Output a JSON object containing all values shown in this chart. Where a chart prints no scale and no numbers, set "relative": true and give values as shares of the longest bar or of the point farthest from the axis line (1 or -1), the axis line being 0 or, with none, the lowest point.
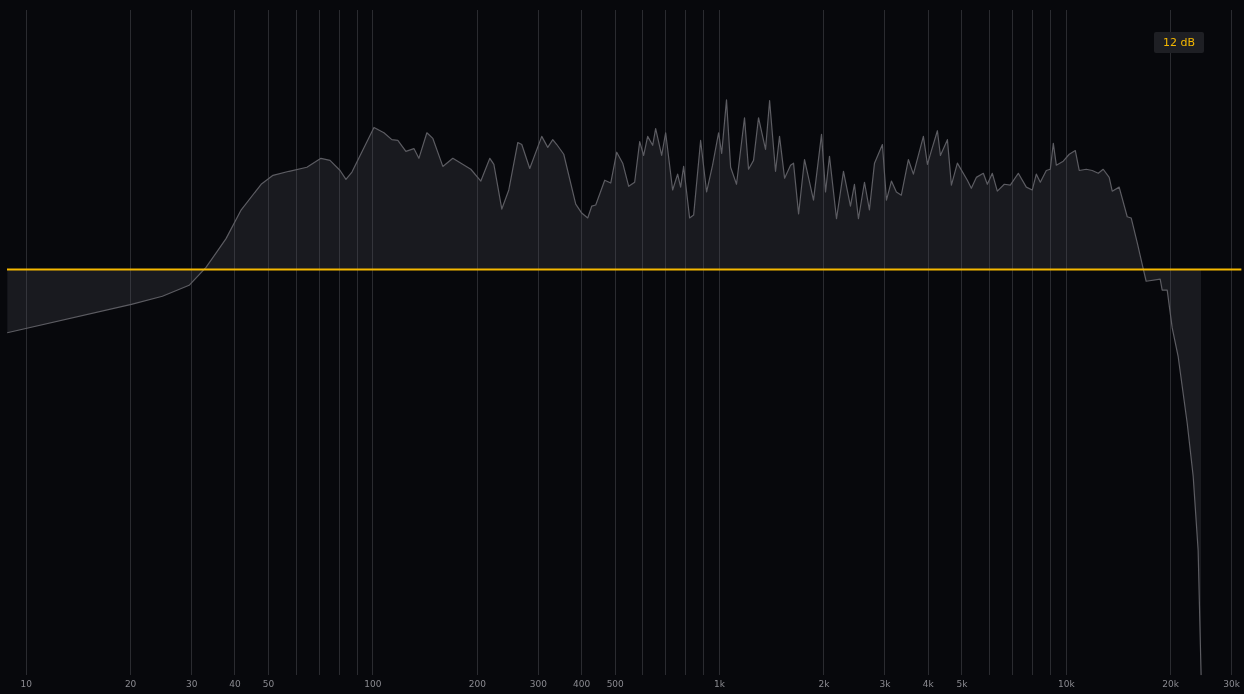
{
  "chart_data": {
    "type": "area",
    "relative": true,
    "log": "x",
    "grid": "x",
    "legend": false,
    "marker": "none",
    "line_style": "solid",
    "xlim": [
      8.8,
      32000
    ],
    "xticks": [
      10,
      20,
      30,
      40,
      50,
      {
        "value": 60,
        "label": null
      },
      {
        "value": 70,
        "label": null
      },
      {
        "value": 80,
        "label": null
      },
      {
        "value": 90,
        "label": null
      },
      100,
      200,
      300,
      400,
      500,
      {
        "value": 600,
        "label": null
      },
      {
        "value": 700,
        "label": null
      },
      {
        "value": 800,
        "label": null
      },
      {
        "value": 900,
        "label": null
      },
      {
        "value": 1000,
        "label": "1k"
      },
      {
        "value": 2000,
        "label": "2k"
      },
      {
        "value": 3000,
        "label": "3k"
      },
      {
        "value": 4000,
        "label": "4k"
      },
      {
        "value": 5000,
        "label": "5k"
      },
      {
        "value": 6000,
        "label": null
      },
      {
        "value": 7000,
        "label": null
      },
      {
        "value": 8000,
        "label": null
      },
      {
        "value": 9000,
        "label": null
      },
      {
        "value": 10000,
        "label": "10k"
      },
      {
        "value": 20000,
        "label": "20k"
      },
      {
        "value": 30000,
        "label": "30k"
      }
    ],
    "annotations": [
      "12 dB"
    ],
    "ref_lines": [
      {
        "axis": "y",
        "value": 0,
        "color": "#f5b800"
      }
    ],
    "series": [
      {
        "color": "#5c5c62",
        "x": [
          8.81,
          20.1,
          24.7,
          29.5,
          33.0,
          37.7,
          41.7,
          47.6,
          51.5,
          57.3,
          64.5,
          70.8,
          75.2,
          80.4,
          83.6,
          87.0,
          100.7,
          107.6,
          113.4,
          118.0,
          124.5,
          131.3,
          135.7,
          143.1,
          148.9,
          159.1,
          170.0,
          191.6,
          204.8,
          217.4,
          223.3,
          235.4,
          246.6,
          261.8,
          268.8,
          283.4,
          306.9,
          319.4,
          330.2,
          339.1,
          355.2,
          384.6,
          400.2,
          416.5,
          427.7,
          439.2,
          466.3,
          485.3,
          505.0,
          525.5,
          546.8,
          568.9,
          588.2,
          603.9,
          620.2,
          641.1,
          654.0,
          680.6,
          698.9,
          732.1,
          756.8,
          772.0,
          787.5,
          819.5,
          841.7,
          881.6,
          917.4,
          954.5,
          993.3,
          1014,
          1047,
          1076,
          1119,
          1180,
          1212,
          1253,
          1295,
          1357,
          1394,
          1450,
          1489,
          1540,
          1602,
          1634,
          1690,
          1758,
          1866,
          1968,
          2021,
          2075,
          2174,
          2277,
          2385,
          2449,
          2515,
          2618,
          2705,
          2798,
          2949,
          3029,
          3131,
          3236,
          3344,
          3504,
          3623,
          3871,
          3977,
          4083,
          4249,
          4335,
          4541,
          4663,
          4852,
          5184,
          5323,
          5502,
          5765,
          5920,
          6120,
          6326,
          6627,
          6896,
          7272,
          7669,
          7980,
          8195,
          8416,
          8758,
          8993,
          9176,
          9361,
          9802,
          10200,
          10620,
          10900,
          11420,
          11880,
          12370,
          12780,
          13300,
          13570,
          14210,
          14990,
          15390,
          16020,
          16670,
          17000,
          18660,
          18910,
          19550,
          20210,
          21030,
          22330,
          23230,
          24010,
          24490
        ],
        "values": [
          -0.156,
          -0.086,
          -0.066,
          -0.039,
          0.005,
          0.076,
          0.147,
          0.21,
          0.232,
          0.242,
          0.252,
          0.274,
          0.269,
          0.244,
          0.222,
          0.24,
          0.35,
          0.337,
          0.32,
          0.318,
          0.291,
          0.298,
          0.274,
          0.337,
          0.323,
          0.254,
          0.274,
          0.247,
          0.218,
          0.274,
          0.259,
          0.149,
          0.196,
          0.313,
          0.308,
          0.249,
          0.328,
          0.301,
          0.32,
          0.308,
          0.284,
          0.161,
          0.139,
          0.127,
          0.156,
          0.159,
          0.22,
          0.213,
          0.289,
          0.262,
          0.205,
          0.215,
          0.315,
          0.281,
          0.328,
          0.306,
          0.347,
          0.281,
          0.337,
          0.196,
          0.235,
          0.203,
          0.254,
          0.127,
          0.134,
          0.318,
          0.191,
          0.257,
          0.337,
          0.286,
          0.418,
          0.252,
          0.21,
          0.374,
          0.247,
          0.269,
          0.374,
          0.296,
          0.416,
          0.242,
          0.328,
          0.225,
          0.257,
          0.262,
          0.137,
          0.271,
          0.171,
          0.333,
          0.191,
          0.279,
          0.125,
          0.242,
          0.156,
          0.21,
          0.125,
          0.215,
          0.147,
          0.262,
          0.308,
          0.171,
          0.218,
          0.191,
          0.183,
          0.271,
          0.235,
          0.328,
          0.259,
          0.293,
          0.342,
          0.281,
          0.32,
          0.208,
          0.262,
          0.22,
          0.2,
          0.227,
          0.237,
          0.21,
          0.237,
          0.193,
          0.21,
          0.208,
          0.237,
          0.203,
          0.196,
          0.235,
          0.215,
          0.244,
          0.247,
          0.311,
          0.257,
          0.267,
          0.284,
          0.293,
          0.244,
          0.247,
          0.244,
          0.237,
          0.247,
          0.227,
          0.193,
          0.203,
          0.13,
          0.127,
          0.066,
          0.002,
          -0.029,
          -0.024,
          -0.051,
          -0.051,
          -0.144,
          -0.215,
          -0.379,
          -0.509,
          -0.692,
          -1
        ]
      }
    ]
  }
}
